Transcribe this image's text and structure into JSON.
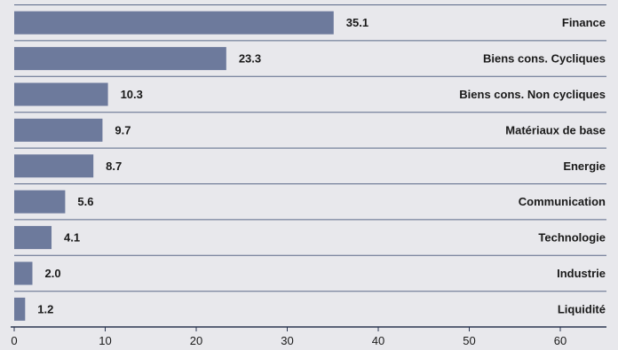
{
  "chart_data": {
    "type": "bar",
    "orientation": "horizontal",
    "categories": [
      "Finance",
      "Biens cons. Cycliques",
      "Biens cons. Non cycliques",
      "Matériaux de base",
      "Energie",
      "Communication",
      "Technologie",
      "Industrie",
      "Liquidité"
    ],
    "values": [
      35.1,
      23.3,
      10.3,
      9.7,
      8.7,
      5.6,
      4.1,
      2.0,
      1.2
    ],
    "value_labels": [
      "35.1",
      "23.3",
      "10.3",
      "9.7",
      "8.7",
      "5.6",
      "4.1",
      "2.0",
      "1.2"
    ],
    "xlim": [
      0,
      65
    ],
    "x_ticks": [
      0,
      10,
      20,
      30,
      40,
      50,
      60
    ],
    "x_tick_labels": [
      "0",
      "10",
      "20",
      "30",
      "40",
      "50",
      "60"
    ],
    "title": "",
    "xlabel": "",
    "ylabel": "",
    "grid": false,
    "legend": "none",
    "colors": {
      "bar": "#6d7a9c",
      "background": "#e8e8ec",
      "separator": "#5a6888",
      "axis": "#2a3550",
      "text": "#1a1a1a"
    }
  }
}
